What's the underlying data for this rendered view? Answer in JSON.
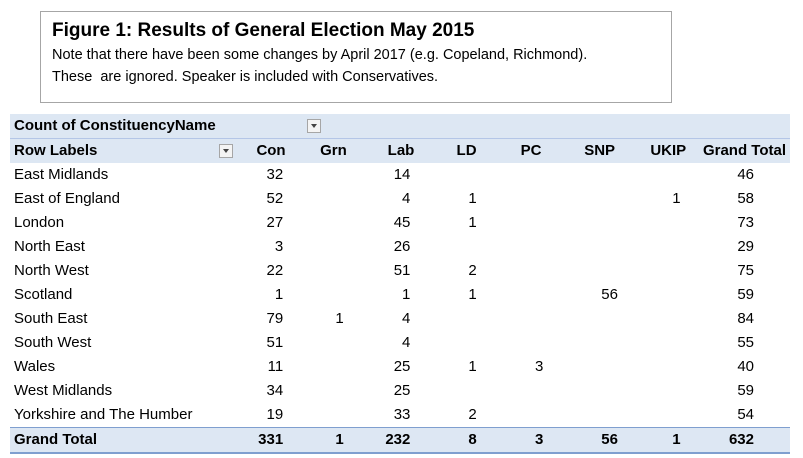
{
  "note": {
    "title": "Figure 1: Results of General Election May 2015",
    "line1": "Note that there have been some changes by April 2017 (e.g. Copeland, Richmond).",
    "line2": "These  are ignored. Speaker is included with Conservatives."
  },
  "pivot": {
    "count_label": "Count of ConstituencyName",
    "row_labels": "Row Labels",
    "columns": [
      "Con",
      "Grn",
      "Lab",
      "LD",
      "PC",
      "SNP",
      "UKIP",
      "Grand Total"
    ],
    "rows": [
      {
        "name": "East Midlands",
        "values": [
          "32",
          "",
          "14",
          "",
          "",
          "",
          "",
          "46"
        ]
      },
      {
        "name": "East of England",
        "values": [
          "52",
          "",
          "4",
          "1",
          "",
          "",
          "1",
          "58"
        ]
      },
      {
        "name": "London",
        "values": [
          "27",
          "",
          "45",
          "1",
          "",
          "",
          "",
          "73"
        ]
      },
      {
        "name": "North East",
        "values": [
          "3",
          "",
          "26",
          "",
          "",
          "",
          "",
          "29"
        ]
      },
      {
        "name": "North West",
        "values": [
          "22",
          "",
          "51",
          "2",
          "",
          "",
          "",
          "75"
        ]
      },
      {
        "name": "Scotland",
        "values": [
          "1",
          "",
          "1",
          "1",
          "",
          "56",
          "",
          "59"
        ]
      },
      {
        "name": "South East",
        "values": [
          "79",
          "1",
          "4",
          "",
          "",
          "",
          "",
          "84"
        ]
      },
      {
        "name": "South West",
        "values": [
          "51",
          "",
          "4",
          "",
          "",
          "",
          "",
          "55"
        ]
      },
      {
        "name": "Wales",
        "values": [
          "11",
          "",
          "25",
          "1",
          "3",
          "",
          "",
          "40"
        ]
      },
      {
        "name": "West Midlands",
        "values": [
          "34",
          "",
          "25",
          "",
          "",
          "",
          "",
          "59"
        ]
      },
      {
        "name": "Yorkshire and The Humber",
        "values": [
          "19",
          "",
          "33",
          "2",
          "",
          "",
          "",
          "54"
        ]
      }
    ],
    "grand_total": {
      "name": "Grand Total",
      "values": [
        "331",
        "1",
        "232",
        "8",
        "3",
        "56",
        "1",
        "632"
      ]
    }
  }
}
